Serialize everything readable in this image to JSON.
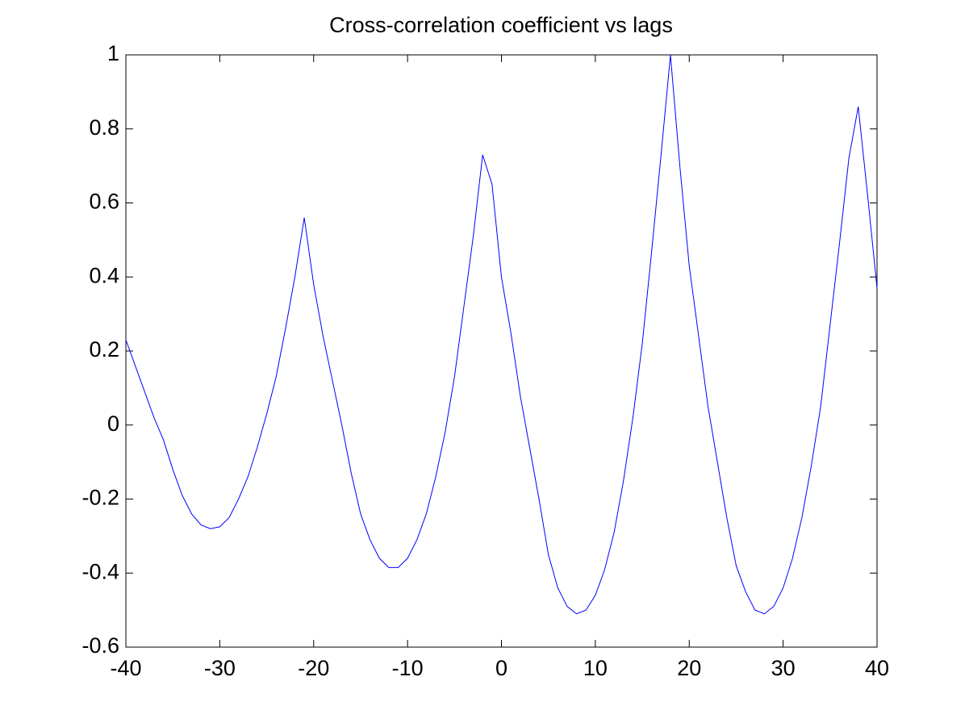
{
  "chart_data": {
    "type": "line",
    "title": "Cross-correlation coefficient vs lags",
    "x": [
      -40,
      -39,
      -38,
      -37,
      -36,
      -35,
      -34,
      -33,
      -32,
      -31,
      -30,
      -29,
      -28,
      -27,
      -26,
      -25,
      -24,
      -23,
      -22,
      -21,
      -20,
      -19,
      -18,
      -17,
      -16,
      -15,
      -14,
      -13,
      -12,
      -11,
      -10,
      -9,
      -8,
      -7,
      -6,
      -5,
      -4,
      -3,
      -2,
      -1,
      0,
      1,
      2,
      3,
      4,
      5,
      6,
      7,
      8,
      9,
      10,
      11,
      12,
      13,
      14,
      15,
      16,
      17,
      18,
      19,
      20,
      21,
      22,
      23,
      24,
      25,
      26,
      27,
      28,
      29,
      30,
      31,
      32,
      33,
      34,
      35,
      36,
      37,
      38,
      39,
      40
    ],
    "series": [
      {
        "color": "#0000ff",
        "values": [
          0.23,
          0.16,
          0.09,
          0.02,
          -0.04,
          -0.12,
          -0.19,
          -0.24,
          -0.27,
          -0.28,
          -0.275,
          -0.25,
          -0.2,
          -0.14,
          -0.06,
          0.03,
          0.13,
          0.26,
          0.4,
          0.56,
          0.38,
          0.24,
          0.12,
          0.0,
          -0.13,
          -0.24,
          -0.31,
          -0.36,
          -0.385,
          -0.385,
          -0.36,
          -0.31,
          -0.24,
          -0.14,
          -0.02,
          0.13,
          0.32,
          0.51,
          0.73,
          0.65,
          0.4,
          0.25,
          0.08,
          -0.06,
          -0.2,
          -0.35,
          -0.44,
          -0.49,
          -0.51,
          -0.5,
          -0.46,
          -0.39,
          -0.29,
          -0.15,
          0.02,
          0.22,
          0.47,
          0.73,
          1.0,
          0.7,
          0.43,
          0.24,
          0.05,
          -0.1,
          -0.25,
          -0.38,
          -0.45,
          -0.5,
          -0.51,
          -0.49,
          -0.44,
          -0.36,
          -0.25,
          -0.11,
          0.05,
          0.27,
          0.49,
          0.72,
          0.86,
          0.62,
          0.37
        ]
      }
    ],
    "xlim": [
      -40,
      40
    ],
    "xticks": [
      -40,
      -30,
      -20,
      -10,
      0,
      10,
      20,
      30,
      40
    ],
    "ylim": [
      -0.6,
      1
    ],
    "yticks": [
      -0.6,
      -0.4,
      -0.2,
      0,
      0.2,
      0.4,
      0.6,
      0.8,
      1
    ]
  }
}
